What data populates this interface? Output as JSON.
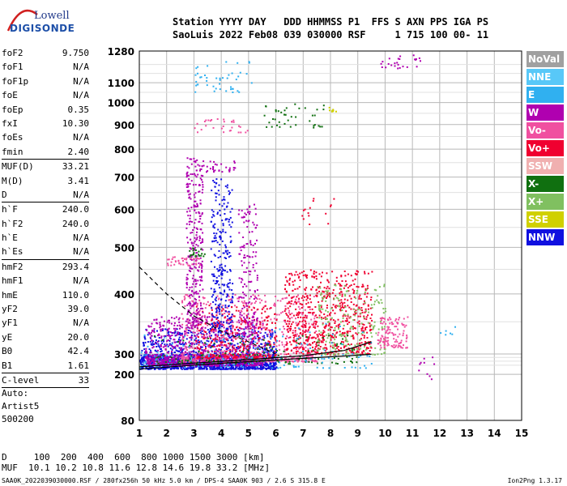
{
  "logo": {
    "line1": "Lowell",
    "line2": "DIGISONDE"
  },
  "header": {
    "line1": "Station YYYY DAY   DDD HHMMSS P1  FFS S AXN PPS IGA PS",
    "line2": "SaoLuis 2022 Feb08 039 030000 RSF     1 715 100 00- 11"
  },
  "params": [
    {
      "name": "foF2",
      "value": "9.750"
    },
    {
      "name": "foF1",
      "value": "N/A"
    },
    {
      "name": "foF1p",
      "value": "N/A"
    },
    {
      "name": "foE",
      "value": "N/A"
    },
    {
      "name": "foEp",
      "value": "0.35"
    },
    {
      "name": "fxI",
      "value": "10.30"
    },
    {
      "name": "foEs",
      "value": "N/A"
    },
    {
      "name": "fmin",
      "value": "2.40"
    },
    {
      "sep": true
    },
    {
      "name": "MUF(D)",
      "value": "33.21"
    },
    {
      "name": "M(D)",
      "value": "3.41"
    },
    {
      "name": "D",
      "value": "N/A"
    },
    {
      "sep": true
    },
    {
      "name": "h`F",
      "value": "240.0"
    },
    {
      "name": "h`F2",
      "value": "240.0"
    },
    {
      "name": "h`E",
      "value": "N/A"
    },
    {
      "name": "h`Es",
      "value": "N/A"
    },
    {
      "sep": true
    },
    {
      "name": "hmF2",
      "value": "293.4"
    },
    {
      "name": "hmF1",
      "value": "N/A"
    },
    {
      "name": "hmE",
      "value": "110.0"
    },
    {
      "name": "yF2",
      "value": "39.0"
    },
    {
      "name": "yF1",
      "value": "N/A"
    },
    {
      "name": "yE",
      "value": "20.0"
    },
    {
      "name": "B0",
      "value": "42.4"
    },
    {
      "name": "B1",
      "value": "1.61"
    },
    {
      "sep": true
    },
    {
      "name": "C-level",
      "value": "33"
    },
    {
      "sep": true
    }
  ],
  "auto": {
    "line1": "Auto:",
    "line2": "Artist5",
    "line3": "500200"
  },
  "legend": [
    {
      "label": "NoVal",
      "color": "#a0a0a0"
    },
    {
      "label": "NNE",
      "color": "#58c8f8"
    },
    {
      "label": "E",
      "color": "#30b0f0"
    },
    {
      "label": "W",
      "color": "#b000b0"
    },
    {
      "label": "Vo-",
      "color": "#f050a0"
    },
    {
      "label": "Vo+",
      "color": "#f00030"
    },
    {
      "label": "SSW",
      "color": "#f0b0b0"
    },
    {
      "label": "X-",
      "color": "#107010"
    },
    {
      "label": "X+",
      "color": "#80c060"
    },
    {
      "label": "SSE",
      "color": "#d0d000"
    },
    {
      "label": "NNW",
      "color": "#1010e0"
    }
  ],
  "bottom": {
    "line1": "D     100  200  400  600  800 1000 1500 3000 [km]",
    "line2": "MUF  10.1 10.2 10.8 11.6 12.8 14.6 19.8 33.2 [MHz]"
  },
  "footer": {
    "left": "SAA0K_2022039030000.RSF / 280fx256h 50 kHz 5.0 km / DPS-4 SAA0K 903 / 2.6 S 315.8 E",
    "right": "Ion2Png 1.3.17"
  },
  "chart_data": {
    "type": "scatter",
    "xlim": [
      1,
      15
    ],
    "ylim": [
      80,
      1280
    ],
    "xticks": [
      1,
      2,
      3,
      4,
      5,
      6,
      7,
      8,
      9,
      10,
      11,
      12,
      13,
      14,
      15
    ],
    "yticks": [
      80,
      200,
      300,
      400,
      500,
      600,
      700,
      800,
      900,
      1000,
      1100,
      1280
    ],
    "y_scale": "piecewise-log",
    "grid": true,
    "profile_line": [
      [
        1.0,
        222
      ],
      [
        3.0,
        240
      ],
      [
        5.0,
        258
      ],
      [
        7.0,
        275
      ],
      [
        8.5,
        288
      ],
      [
        9.5,
        298
      ]
    ],
    "profile_line_upper": [
      [
        1.0,
        232
      ],
      [
        3.0,
        250
      ],
      [
        5.0,
        268
      ],
      [
        7.0,
        290
      ],
      [
        8.5,
        305
      ],
      [
        9.5,
        318
      ]
    ],
    "dashed_curve": [
      [
        1.0,
        455
      ],
      [
        2.0,
        400
      ],
      [
        3.0,
        360
      ],
      [
        4.0,
        335
      ],
      [
        5.0,
        318
      ],
      [
        6.0,
        300
      ]
    ],
    "echo_clusters": [
      {
        "color": "#1010e0",
        "x": [
          1.0,
          6.0
        ],
        "y": [
          225,
          340
        ],
        "count": 1500
      },
      {
        "color": "#b000b0",
        "x": [
          1.2,
          5.5
        ],
        "y": [
          240,
          360
        ],
        "count": 900
      },
      {
        "color": "#f050a0",
        "x": [
          2.5,
          7.5
        ],
        "y": [
          260,
          400
        ],
        "count": 700
      },
      {
        "color": "#f00030",
        "x": [
          6.3,
          9.5
        ],
        "y": [
          300,
          450
        ],
        "count": 700
      },
      {
        "color": "#f00030",
        "x": [
          3.0,
          6.0
        ],
        "y": [
          280,
          380
        ],
        "count": 300
      },
      {
        "color": "#80c060",
        "x": [
          7.5,
          10.0
        ],
        "y": [
          300,
          420
        ],
        "count": 200
      },
      {
        "color": "#107010",
        "x": [
          1.5,
          9.0
        ],
        "y": [
          250,
          330
        ],
        "count": 150
      },
      {
        "color": "#30b0f0",
        "x": [
          1.0,
          9.5
        ],
        "y": [
          230,
          350
        ],
        "count": 150
      },
      {
        "color": "#b000b0",
        "x": [
          2.7,
          3.3
        ],
        "y": [
          340,
          780
        ],
        "count": 300
      },
      {
        "color": "#1010e0",
        "x": [
          3.6,
          4.4
        ],
        "y": [
          340,
          700
        ],
        "count": 250
      },
      {
        "color": "#b000b0",
        "x": [
          4.6,
          5.3
        ],
        "y": [
          330,
          620
        ],
        "count": 150
      },
      {
        "color": "#f050a0",
        "x": [
          9.7,
          10.8
        ],
        "y": [
          310,
          360
        ],
        "count": 120
      }
    ],
    "echo_traces": [
      {
        "color": "#b000b0",
        "x": [
          2.9,
          4.5
        ],
        "y": [
          720,
          760
        ],
        "count": 40
      },
      {
        "color": "#f050a0",
        "x": [
          3.0,
          5.0
        ],
        "y": [
          870,
          930
        ],
        "count": 30
      },
      {
        "color": "#107010",
        "x": [
          5.3,
          7.8
        ],
        "y": [
          890,
          1000
        ],
        "count": 40
      },
      {
        "color": "#d0d000",
        "x": [
          7.8,
          8.2
        ],
        "y": [
          960,
          980
        ],
        "count": 8
      },
      {
        "color": "#b000b0",
        "x": [
          9.8,
          11.3
        ],
        "y": [
          1180,
          1275
        ],
        "count": 25
      },
      {
        "color": "#b000b0",
        "x": [
          11.2,
          11.8
        ],
        "y": [
          170,
          300
        ],
        "count": 10
      },
      {
        "color": "#30b0f0",
        "x": [
          3.0,
          5.2
        ],
        "y": [
          1050,
          1230
        ],
        "count": 45
      },
      {
        "color": "#f050a0",
        "x": [
          2.0,
          3.2
        ],
        "y": [
          460,
          480
        ],
        "count": 40
      },
      {
        "color": "#107010",
        "x": [
          2.8,
          3.4
        ],
        "y": [
          480,
          500
        ],
        "count": 20
      },
      {
        "color": "#f00030",
        "x": [
          6.8,
          8.2
        ],
        "y": [
          560,
          640
        ],
        "count": 15
      },
      {
        "color": "#30b0f0",
        "x": [
          12.0,
          12.6
        ],
        "y": [
          330,
          345
        ],
        "count": 6
      }
    ]
  }
}
